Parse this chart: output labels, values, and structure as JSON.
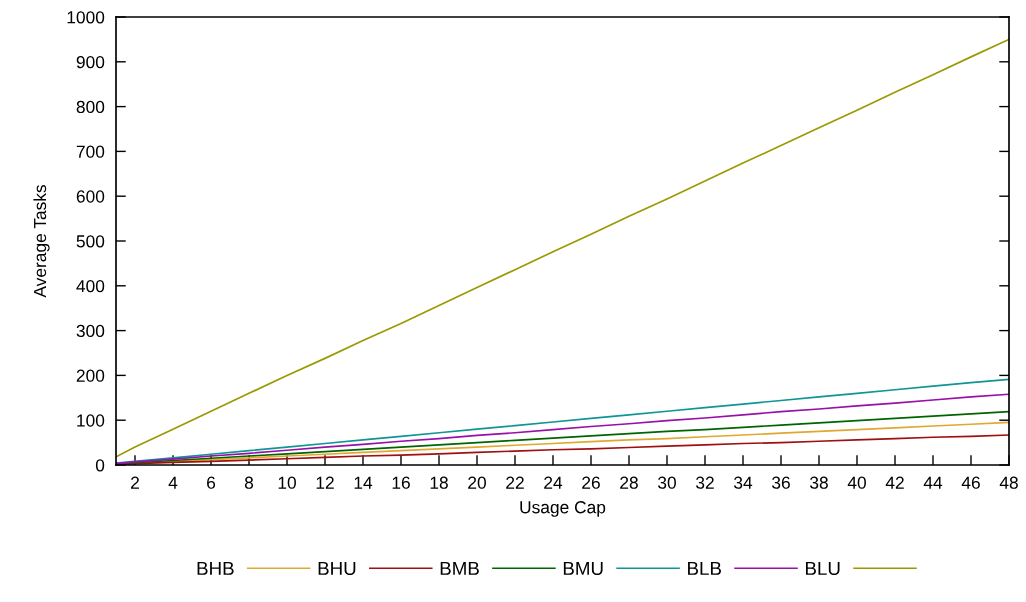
{
  "chart_data": {
    "type": "line",
    "xlabel": "Usage Cap",
    "ylabel": "Average Tasks",
    "x": [
      1,
      2,
      4,
      6,
      8,
      10,
      12,
      14,
      16,
      18,
      20,
      22,
      24,
      26,
      28,
      30,
      32,
      34,
      36,
      38,
      40,
      42,
      44,
      46,
      48
    ],
    "xlim": [
      1,
      48
    ],
    "xticks": [
      2,
      4,
      6,
      8,
      10,
      12,
      14,
      16,
      18,
      20,
      22,
      24,
      26,
      28,
      30,
      32,
      34,
      36,
      38,
      40,
      42,
      44,
      46,
      48
    ],
    "ylim": [
      0,
      1000
    ],
    "yticks": [
      0,
      100,
      200,
      300,
      400,
      500,
      600,
      700,
      800,
      900,
      1000
    ],
    "legend": "bottom",
    "line_style": "solid",
    "series": [
      {
        "name": "BHB",
        "color": "#e0a830",
        "values": [
          2,
          4,
          8,
          12,
          16,
          20,
          24,
          28,
          32,
          36,
          40,
          44,
          48,
          52,
          56,
          59,
          63,
          67,
          71,
          75,
          79,
          83,
          87,
          91,
          95
        ]
      },
      {
        "name": "BHU",
        "color": "#a01010",
        "values": [
          1,
          3,
          6,
          8,
          11,
          14,
          17,
          20,
          22,
          25,
          28,
          31,
          34,
          36,
          39,
          42,
          45,
          48,
          50,
          53,
          56,
          59,
          62,
          64,
          67
        ]
      },
      {
        "name": "BMB",
        "color": "#006400",
        "values": [
          3,
          5,
          10,
          15,
          20,
          25,
          30,
          35,
          40,
          45,
          50,
          55,
          60,
          65,
          70,
          75,
          79,
          84,
          89,
          94,
          99,
          104,
          109,
          114,
          119
        ]
      },
      {
        "name": "BMU",
        "color": "#109595",
        "values": [
          4,
          8,
          16,
          24,
          32,
          40,
          48,
          56,
          64,
          72,
          80,
          88,
          96,
          104,
          112,
          120,
          128,
          136,
          144,
          152,
          160,
          168,
          176,
          184,
          191
        ]
      },
      {
        "name": "BLB",
        "color": "#9810a8",
        "values": [
          3,
          7,
          13,
          20,
          26,
          33,
          40,
          46,
          53,
          59,
          66,
          72,
          79,
          86,
          92,
          99,
          105,
          112,
          119,
          125,
          132,
          138,
          145,
          152,
          158
        ]
      },
      {
        "name": "BLU",
        "color": "#9a9a00",
        "values": [
          18,
          40,
          80,
          120,
          160,
          200,
          238,
          278,
          316,
          356,
          396,
          436,
          476,
          515,
          555,
          594,
          634,
          674,
          713,
          753,
          792,
          832,
          871,
          911,
          950
        ]
      }
    ]
  }
}
